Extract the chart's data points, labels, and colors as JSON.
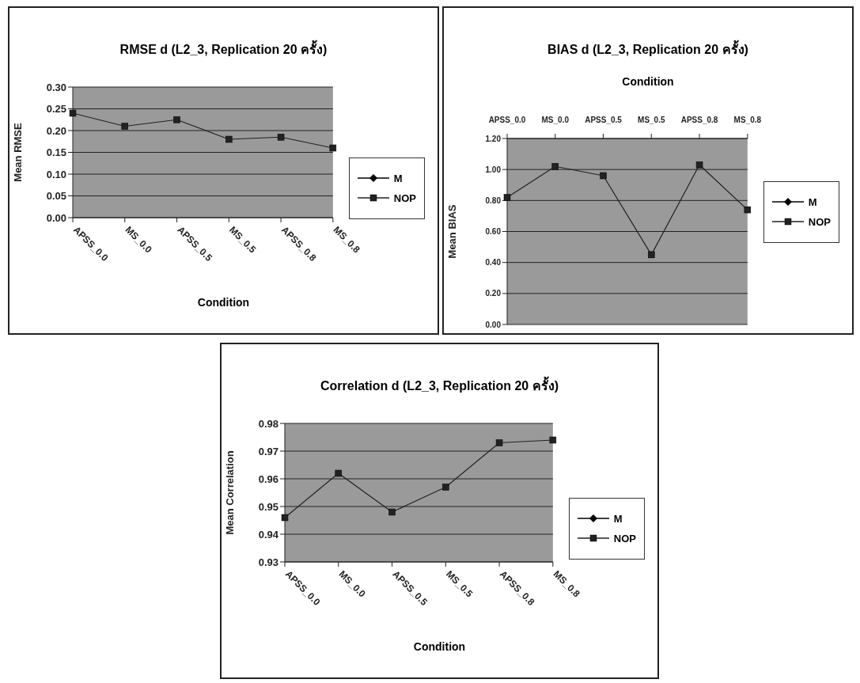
{
  "chart_data": [
    {
      "type": "line",
      "title": "RMSE d (L2_3, Replication 20 ครั้ง)",
      "xlabel": "Condition",
      "ylabel": "Mean RMSE",
      "categories": [
        "APSS_0.0",
        "MS_0.0",
        "APSS_0.5",
        "MS_0.5",
        "APSS_0.8",
        "MS_0.8"
      ],
      "series": [
        {
          "name": "M",
          "color": "#000000",
          "marker": "diamond",
          "values": [
            null,
            null,
            null,
            null,
            null,
            null
          ]
        },
        {
          "name": "NOP",
          "color": "#222222",
          "marker": "square",
          "values": [
            0.24,
            0.21,
            0.225,
            0.18,
            0.185,
            0.16
          ]
        }
      ],
      "ylim": [
        0,
        0.3
      ],
      "yticks": [
        {
          "value": 0,
          "label": "0.00"
        },
        {
          "value": 0.05,
          "label": "0.05"
        },
        {
          "value": 0.1,
          "label": "0.10"
        },
        {
          "value": 0.15,
          "label": "0.15"
        },
        {
          "value": 0.2,
          "label": "0.20"
        },
        {
          "value": 0.25,
          "label": "0.25"
        },
        {
          "value": 0.3,
          "label": "0.30"
        }
      ],
      "grid": "y",
      "legend": "right"
    },
    {
      "type": "line",
      "title": "BIAS d (L2_3, Replication 20 ครั้ง)",
      "xlabel": "Condition",
      "ylabel": "Mean BIAS",
      "categories": [
        "APSS_0.0",
        "MS_0.0",
        "APSS_0.5",
        "MS_0.5",
        "APSS_0.8",
        "MS_0.8"
      ],
      "series": [
        {
          "name": "M",
          "color": "#000000",
          "marker": "diamond",
          "values": [
            null,
            null,
            null,
            null,
            null,
            null
          ]
        },
        {
          "name": "NOP",
          "color": "#222222",
          "marker": "square",
          "values": [
            0.82,
            1.02,
            0.96,
            0.45,
            1.03,
            0.74
          ]
        }
      ],
      "ylim": [
        0,
        1.2
      ],
      "yticks": [
        {
          "value": 0,
          "label": "0.00"
        },
        {
          "value": 0.2,
          "label": "0.20"
        },
        {
          "value": 0.4,
          "label": "0.40"
        },
        {
          "value": 0.6,
          "label": "0.60"
        },
        {
          "value": 0.8,
          "label": "0.80"
        },
        {
          "value": 1,
          "label": "1.00"
        },
        {
          "value": 1.2,
          "label": "1.20"
        }
      ],
      "grid": "y",
      "legend": "right"
    },
    {
      "type": "line",
      "title": "Correlation d (L2_3, Replication 20 ครั้ง)",
      "xlabel": "Condition",
      "ylabel": "Mean Correlation",
      "categories": [
        "APSS_0.0",
        "MS_0.0",
        "APSS_0.5",
        "MS_0.5",
        "APSS_0.8",
        "MS_0.8"
      ],
      "series": [
        {
          "name": "M",
          "color": "#000000",
          "marker": "diamond",
          "values": [
            null,
            null,
            null,
            null,
            null,
            null
          ]
        },
        {
          "name": "NOP",
          "color": "#222222",
          "marker": "square",
          "values": [
            0.946,
            0.962,
            0.948,
            0.957,
            0.973,
            0.974
          ]
        }
      ],
      "ylim": [
        0.93,
        0.98
      ],
      "yticks": [
        {
          "value": 0.93,
          "label": "0.93"
        },
        {
          "value": 0.94,
          "label": "0.94"
        },
        {
          "value": 0.95,
          "label": "0.95"
        },
        {
          "value": 0.96,
          "label": "0.96"
        },
        {
          "value": 0.97,
          "label": "0.97"
        },
        {
          "value": 0.98,
          "label": "0.98"
        }
      ],
      "grid": "y",
      "legend": "right"
    }
  ]
}
